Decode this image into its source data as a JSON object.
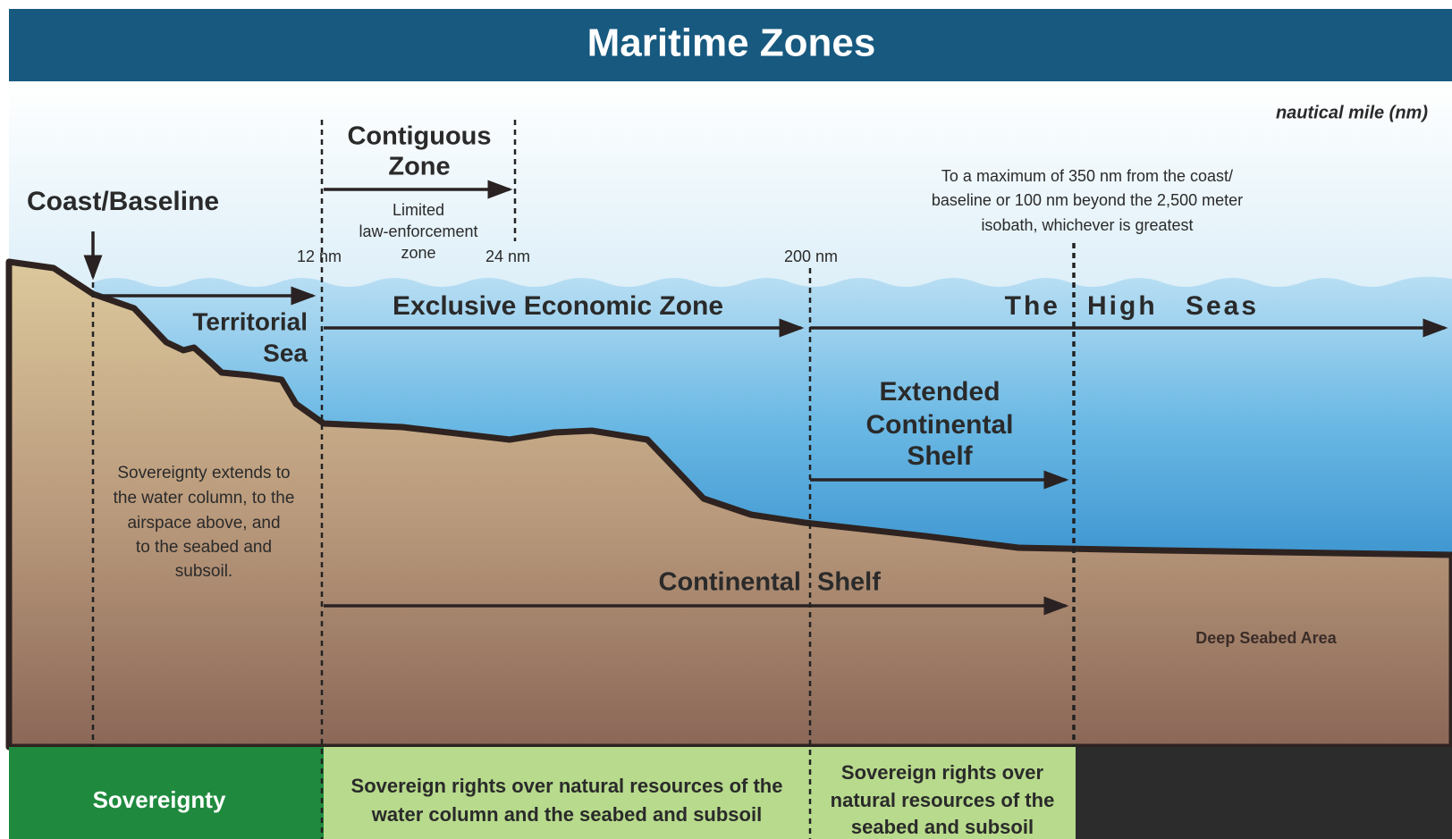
{
  "title": "Maritime Zones",
  "unit_note": "nautical mile (nm)",
  "coast_baseline": "Coast/Baseline",
  "contiguous_zone": {
    "lines": [
      "Contiguous",
      "Zone"
    ],
    "note": [
      "Limited",
      "law-enforcement",
      "zone"
    ]
  },
  "markers": [
    "12 nm",
    "24 nm",
    "200 nm"
  ],
  "extended_limit_note": [
    "To a maximum of 350 nm from the coast/",
    "baseline or 100 nm beyond the 2,500 meter",
    "isobath, whichever is greatest"
  ],
  "territorial_sea": [
    "Territorial",
    "Sea"
  ],
  "exclusive_economic_zone": "Exclusive Economic Zone",
  "high_seas": [
    "The",
    "High Seas"
  ],
  "extended_continental_shelf": [
    "Extended",
    "Continental",
    "Shelf"
  ],
  "sovereignty_note": [
    "Sovereignty extends to",
    "the water column, to the",
    "airspace above, and",
    "to the seabed and",
    "subsoil."
  ],
  "continental_shelf": [
    "Continental",
    "Shelf"
  ],
  "deep_seabed": "Deep Seabed Area",
  "bottom_band": {
    "sovereignty": "Sovereignty",
    "eez_rights": [
      "Sovereign rights over natural resources of the",
      "water column and the seabed and subsoil"
    ],
    "shelf_rights": [
      "Sovereign rights over",
      "natural resources of the",
      "seabed and subsoil"
    ]
  }
}
